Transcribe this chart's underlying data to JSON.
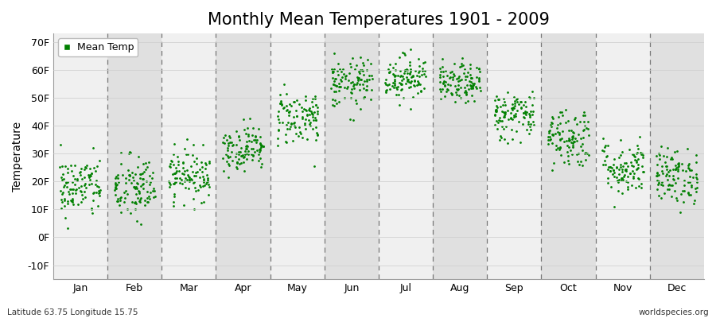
{
  "title": "Monthly Mean Temperatures 1901 - 2009",
  "ylabel": "Temperature",
  "xlabel_labels": [
    "Jan",
    "Feb",
    "Mar",
    "Apr",
    "May",
    "Jun",
    "Jul",
    "Aug",
    "Sep",
    "Oct",
    "Nov",
    "Dec"
  ],
  "ytick_labels": [
    "-10F",
    "0F",
    "10F",
    "20F",
    "30F",
    "40F",
    "50F",
    "60F",
    "70F"
  ],
  "ytick_values": [
    -10,
    0,
    10,
    20,
    30,
    40,
    50,
    60,
    70
  ],
  "ylim": [
    -15,
    73
  ],
  "dot_color": "#008000",
  "dot_size": 4,
  "legend_label": "Mean Temp",
  "footnote_left": "Latitude 63.75 Longitude 15.75",
  "footnote_right": "worldspecies.org",
  "background_color": "#ffffff",
  "band_light": "#f0f0f0",
  "band_dark": "#e0e0e0",
  "title_fontsize": 15,
  "axis_fontsize": 10,
  "tick_fontsize": 9,
  "n_years": 109,
  "monthly_means_F": [
    18.0,
    17.5,
    22.5,
    32.0,
    43.0,
    55.0,
    57.5,
    55.0,
    44.0,
    36.0,
    25.0,
    22.0
  ],
  "monthly_stds_F": [
    5.5,
    6.0,
    4.5,
    4.0,
    5.0,
    4.5,
    4.0,
    3.5,
    4.5,
    5.5,
    5.0,
    5.0
  ],
  "random_seed": 42
}
